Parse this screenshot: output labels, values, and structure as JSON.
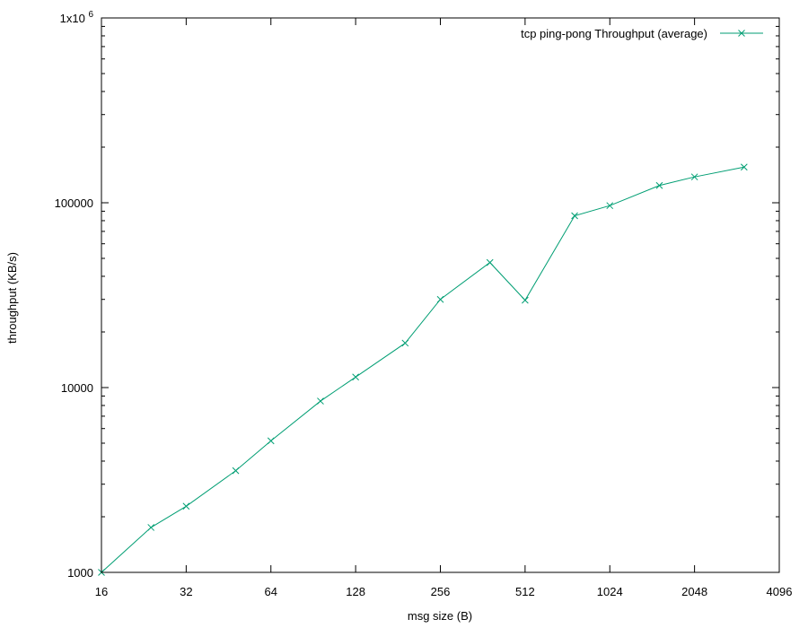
{
  "chart_data": {
    "type": "line",
    "title": "",
    "xlabel": "msg size (B)",
    "ylabel": "throughput (KB/s)",
    "x_scale": "log2",
    "y_scale": "log10",
    "xlim": [
      16,
      4096
    ],
    "ylim": [
      1000,
      1000000
    ],
    "x_ticks": [
      16,
      32,
      64,
      128,
      256,
      512,
      1024,
      2048,
      4096
    ],
    "x_tick_labels": [
      "16",
      "32",
      "64",
      "128",
      "256",
      "512",
      "1024",
      "2048",
      "4096"
    ],
    "y_ticks": [
      1000,
      10000,
      100000,
      1000000
    ],
    "y_tick_labels": [
      {
        "base": "1000",
        "exp": ""
      },
      {
        "base": "10000",
        "exp": ""
      },
      {
        "base": "100000",
        "exp": ""
      },
      {
        "base": "1x10",
        "exp": "6"
      }
    ],
    "grid": false,
    "legend_position": "top-right",
    "series": [
      {
        "name": "tcp ping-pong Throughput (average)",
        "color": "#009e73",
        "marker": "x",
        "x": [
          16,
          24,
          32,
          48,
          64,
          96,
          128,
          192,
          256,
          384,
          512,
          768,
          1024,
          1536,
          2048,
          3072
        ],
        "y": [
          1000,
          1750,
          2280,
          3550,
          5150,
          8450,
          11400,
          17400,
          30000,
          47500,
          29700,
          85000,
          96500,
          124000,
          138000,
          156000
        ]
      }
    ]
  }
}
